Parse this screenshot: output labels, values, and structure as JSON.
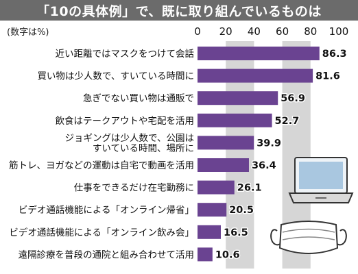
{
  "title": "「10の具体例」で、既に取り組んでいるものは",
  "unit_note": "(数字は%)",
  "colors": {
    "bar": "#6a4391",
    "grid_band": "#d6d6d6",
    "title_bg": "#6b6b6b"
  },
  "icons": [
    "laptop-icon",
    "face-mask-icon"
  ],
  "chart_data": {
    "type": "bar",
    "orientation": "horizontal",
    "xlim": [
      0,
      100
    ],
    "ticks": [
      0,
      20,
      40,
      60,
      80,
      100
    ],
    "grid": "alternating-bands",
    "categories": [
      "近い距離ではマスクをつけて会話",
      "買い物は少人数で、すいている時間に",
      "急ぎでない買い物は通販で",
      "飲食はテークアウトや宅配を活用",
      "ジョギングは少人数で、公園は\nすいている時間、場所に",
      "筋トレ、ヨガなどの運動は自宅で動画を活用",
      "仕事をできるだけ在宅勤務に",
      "ビデオ通話機能による「オンライン帰省」",
      "ビデオ通話機能による「オンライン飲み会」",
      "遠隔診療を普段の通院と組み合わせて活用"
    ],
    "values": [
      86.3,
      81.6,
      56.9,
      52.7,
      39.9,
      36.4,
      26.1,
      20.5,
      16.5,
      10.6
    ],
    "value_labels": [
      "86.3",
      "81.6",
      "56.9",
      "52.7",
      "39.9",
      "36.4",
      "26.1",
      "20.5",
      "16.5",
      "10.6"
    ]
  }
}
